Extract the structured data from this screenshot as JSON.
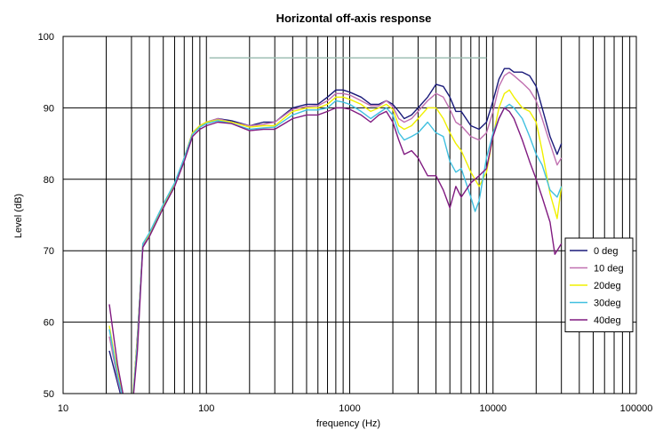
{
  "chart_data": {
    "type": "line",
    "title": "Horizontal off-axis response",
    "xlabel": "frequency (Hz)",
    "ylabel": "Level (dB)",
    "x_scale": "log",
    "xlim": [
      10,
      100000
    ],
    "ylim": [
      50,
      100
    ],
    "x_tick_labels": [
      "10",
      "100",
      "1000",
      "10000",
      "100000"
    ],
    "y_tick_labels": [
      "50",
      "60",
      "70",
      "80",
      "90",
      "100"
    ],
    "grid": "vertical log gridlines, horizontal every 10 dB",
    "legend_position": "right",
    "reference_line": {
      "x": [
        105,
        9000
      ],
      "y": 97,
      "color": "#9fbfb5"
    },
    "series": [
      {
        "name": "0 deg",
        "color": "#1a1a7a",
        "x": [
          21,
          24,
          27,
          30,
          33,
          36,
          40,
          50,
          60,
          70,
          80,
          90,
          100,
          120,
          150,
          200,
          250,
          300,
          400,
          500,
          600,
          700,
          800,
          900,
          1000,
          1200,
          1400,
          1600,
          1800,
          2000,
          2200,
          2400,
          2700,
          3000,
          3500,
          4000,
          4500,
          5000,
          5500,
          6000,
          7000,
          8000,
          9000,
          10000,
          11000,
          12000,
          13000,
          14000,
          16000,
          18000,
          20000,
          22000,
          25000,
          28000,
          30000
        ],
        "y": [
          56,
          51.5,
          47.5,
          46.5,
          58,
          70.5,
          72,
          76,
          79,
          83,
          86.5,
          87.5,
          88,
          88.5,
          88.2,
          87.5,
          88,
          88,
          90,
          90.5,
          90.5,
          91.5,
          92.5,
          92.5,
          92.2,
          91.5,
          90.5,
          90.5,
          91,
          90.5,
          89.5,
          88.5,
          89,
          90,
          91.5,
          93.3,
          93,
          91.5,
          89.5,
          89.5,
          87.5,
          87,
          88,
          91,
          94,
          95.5,
          95.5,
          95,
          95,
          94.5,
          93,
          90,
          86,
          83.5,
          85
        ]
      },
      {
        "name": "10 deg",
        "color": "#c070b0",
        "x": [
          21,
          24,
          27,
          30,
          33,
          36,
          40,
          50,
          60,
          70,
          80,
          90,
          100,
          120,
          150,
          200,
          250,
          300,
          400,
          500,
          600,
          700,
          800,
          900,
          1000,
          1200,
          1400,
          1600,
          1800,
          2000,
          2200,
          2400,
          2700,
          3000,
          3500,
          4000,
          4500,
          5000,
          5500,
          6000,
          7000,
          8000,
          9000,
          10000,
          11000,
          12000,
          13000,
          14000,
          16000,
          18000,
          20000,
          22000,
          25000,
          28000,
          30000
        ],
        "y": [
          58,
          52,
          48,
          47,
          57.5,
          70.8,
          72,
          76.2,
          79.2,
          83,
          86.5,
          87.5,
          88,
          88.5,
          88,
          87.5,
          87.7,
          88,
          89.8,
          90.2,
          90.3,
          91,
          92,
          92,
          91.8,
          91,
          90.3,
          90.3,
          91,
          90.2,
          88.5,
          88,
          88.5,
          89.5,
          91,
          92,
          91.5,
          89.8,
          88,
          87.5,
          86,
          85.5,
          86.5,
          89.5,
          93,
          94.5,
          95,
          94.5,
          93.5,
          92.5,
          91,
          88.5,
          85,
          82,
          83
        ]
      },
      {
        "name": "20deg",
        "color": "#f0f000",
        "x": [
          21,
          24,
          27,
          30,
          33,
          36,
          40,
          50,
          60,
          70,
          80,
          90,
          100,
          120,
          150,
          200,
          250,
          300,
          400,
          500,
          600,
          700,
          800,
          900,
          1000,
          1200,
          1400,
          1600,
          1800,
          2000,
          2200,
          2400,
          2700,
          3000,
          3500,
          4000,
          4500,
          5000,
          5500,
          6000,
          7000,
          8000,
          9000,
          10000,
          11000,
          12000,
          13000,
          14000,
          16000,
          18000,
          20000,
          22000,
          25000,
          28000,
          30000
        ],
        "y": [
          59.5,
          53,
          48.5,
          47.5,
          57.5,
          71,
          72.2,
          76.3,
          79.3,
          83,
          86.5,
          87.5,
          88,
          88.3,
          88,
          87.3,
          87.5,
          87.5,
          89.5,
          90,
          90,
          90.5,
          91.5,
          91.5,
          91.2,
          90.5,
          89.5,
          90,
          90.5,
          89.8,
          87.5,
          87,
          87.5,
          88.5,
          90,
          90,
          88.5,
          86.5,
          85,
          84,
          81,
          79,
          81,
          86,
          90,
          92,
          92.5,
          91.5,
          90,
          89.5,
          88,
          84,
          78,
          74.5,
          79
        ]
      },
      {
        "name": "30deg",
        "color": "#40c0e0",
        "x": [
          21,
          24,
          27,
          30,
          33,
          36,
          40,
          50,
          60,
          70,
          80,
          90,
          100,
          120,
          150,
          200,
          250,
          300,
          400,
          500,
          600,
          700,
          800,
          900,
          1000,
          1200,
          1400,
          1600,
          1800,
          2000,
          2200,
          2400,
          2700,
          3000,
          3500,
          4000,
          4500,
          5000,
          5500,
          6000,
          7000,
          7500,
          8000,
          9000,
          10000,
          11000,
          12000,
          13000,
          14000,
          16000,
          18000,
          20000,
          22000,
          25000,
          28000,
          30000
        ],
        "y": [
          59,
          52.5,
          48,
          47,
          57,
          71,
          72.5,
          76.5,
          79.5,
          83,
          86.3,
          87.3,
          87.8,
          88.2,
          87.8,
          87,
          87.2,
          87.3,
          89,
          89.7,
          89.7,
          90,
          91,
          90.8,
          90.5,
          89.5,
          88.5,
          89.3,
          90,
          89,
          86.5,
          85.5,
          86,
          86.5,
          88,
          86.5,
          86,
          82.5,
          81,
          81.5,
          77.5,
          75.5,
          77,
          83,
          86.5,
          88.5,
          90,
          90.5,
          90,
          88.5,
          86,
          83.5,
          82,
          78.5,
          77.5,
          79
        ]
      },
      {
        "name": "40deg",
        "color": "#801a80",
        "x": [
          21,
          24,
          27,
          30,
          33,
          36,
          40,
          50,
          60,
          70,
          80,
          90,
          100,
          120,
          150,
          200,
          250,
          300,
          400,
          500,
          600,
          700,
          800,
          900,
          1000,
          1200,
          1400,
          1600,
          1800,
          2000,
          2200,
          2400,
          2700,
          3000,
          3500,
          4000,
          4500,
          5000,
          5500,
          6000,
          7000,
          8000,
          9000,
          10000,
          11000,
          12000,
          13000,
          14000,
          16000,
          18000,
          20000,
          22000,
          25000,
          27000,
          30000
        ],
        "y": [
          62.5,
          54,
          48.5,
          46.5,
          56,
          70.5,
          72,
          76,
          79,
          82.5,
          86,
          87,
          87.5,
          88,
          87.8,
          86.8,
          87,
          87,
          88.5,
          89,
          89,
          89.5,
          90,
          90,
          89.8,
          89,
          88,
          89,
          89.5,
          88,
          85.5,
          83.5,
          84,
          83,
          80.5,
          80.5,
          78.5,
          76,
          79,
          77.5,
          79.5,
          80.5,
          81.5,
          86,
          88.5,
          90,
          89.5,
          88.5,
          85.5,
          82.5,
          80,
          77.5,
          74,
          69.5,
          71
        ]
      }
    ]
  }
}
